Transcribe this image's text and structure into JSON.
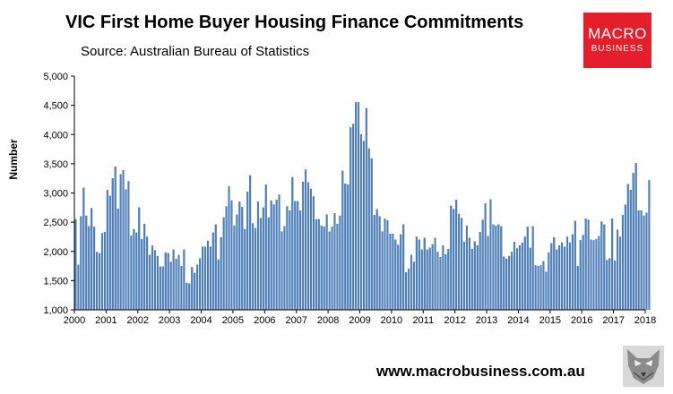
{
  "header": {
    "title": "VIC First Home Buyer Housing Finance Commitments",
    "subtitle": "Source: Australian Bureau of Statistics"
  },
  "logo": {
    "line1": "MACRO",
    "line2": "BUSINESS"
  },
  "footer": {
    "url": "www.macrobusiness.com.au",
    "mascot_icon": "wolf-icon"
  },
  "colors": {
    "bar": "#4f81bd",
    "bar_edge": "#3a6aa3",
    "logo_bg": "#e41e2a",
    "axis": "#000000"
  },
  "chart_data": {
    "type": "bar",
    "title": "VIC First Home Buyer Housing Finance Commitments",
    "xlabel": "",
    "ylabel": "Number",
    "ylim": [
      1000,
      5000
    ],
    "yticks": [
      1000,
      1500,
      2000,
      2500,
      3000,
      3500,
      4000,
      4500,
      5000
    ],
    "ytick_labels": [
      "1,000",
      "1,500",
      "2,000",
      "2,500",
      "3,000",
      "3,500",
      "4,000",
      "4,500",
      "5,000"
    ],
    "xtick_labels": [
      "2000",
      "2001",
      "2002",
      "2003",
      "2004",
      "2005",
      "2006",
      "2007",
      "2008",
      "2009",
      "2010",
      "2011",
      "2012",
      "2013",
      "2014",
      "2015",
      "2016",
      "2017",
      "2018"
    ],
    "x_start": "2000-01",
    "frequency": "monthly",
    "grid": false,
    "legend": "none",
    "values": [
      2550,
      1770,
      2600,
      3090,
      2610,
      2430,
      2740,
      2420,
      1990,
      1970,
      2310,
      2330,
      3050,
      2950,
      3250,
      3450,
      2730,
      3320,
      3390,
      3060,
      3200,
      2270,
      2380,
      2320,
      2750,
      2210,
      2470,
      2250,
      1940,
      2100,
      2020,
      1920,
      1740,
      1740,
      1980,
      1970,
      1820,
      2030,
      1870,
      1940,
      1750,
      2030,
      1460,
      1450,
      1730,
      1630,
      1770,
      1880,
      2080,
      2080,
      2180,
      2080,
      2320,
      2460,
      1860,
      2240,
      2580,
      2770,
      3110,
      2870,
      2440,
      2630,
      2850,
      2760,
      2380,
      3020,
      3300,
      2480,
      2400,
      2850,
      2570,
      2750,
      3140,
      2580,
      2870,
      2800,
      2880,
      2970,
      2340,
      2430,
      2770,
      2700,
      3270,
      2860,
      2860,
      2700,
      3190,
      3400,
      3180,
      3070,
      2940,
      2550,
      2550,
      2440,
      2420,
      2630,
      2340,
      2420,
      2650,
      2470,
      2610,
      3380,
      3160,
      3140,
      4120,
      4180,
      4550,
      4550,
      4000,
      3890,
      4450,
      3760,
      3590,
      2620,
      2720,
      2600,
      2340,
      2560,
      2530,
      2300,
      2300,
      2200,
      2110,
      2290,
      2460,
      1640,
      1700,
      1940,
      1820,
      2250,
      2200,
      2030,
      2230,
      2030,
      2060,
      2120,
      2230,
      1990,
      1900,
      2100,
      1950,
      2040,
      2780,
      2720,
      2880,
      2640,
      2570,
      2160,
      2440,
      2230,
      2040,
      2170,
      2100,
      2330,
      2540,
      2820,
      2260,
      2890,
      2460,
      2440,
      2460,
      2430,
      1910,
      1870,
      1920,
      1990,
      2160,
      2050,
      2100,
      2150,
      2250,
      2420,
      2060,
      2430,
      1760,
      1750,
      1760,
      1830,
      1650,
      1980,
      2140,
      2240,
      2030,
      2100,
      2150,
      2080,
      2250,
      2150,
      2290,
      2520,
      1750,
      2190,
      2280,
      2560,
      2540,
      2200,
      2190,
      2210,
      2260,
      2510,
      2460,
      1850,
      1880,
      2560,
      1840,
      2370,
      2250,
      2620,
      2800,
      3150,
      3050,
      3340,
      3510,
      2700,
      2700,
      2610,
      2660,
      3220
    ]
  }
}
